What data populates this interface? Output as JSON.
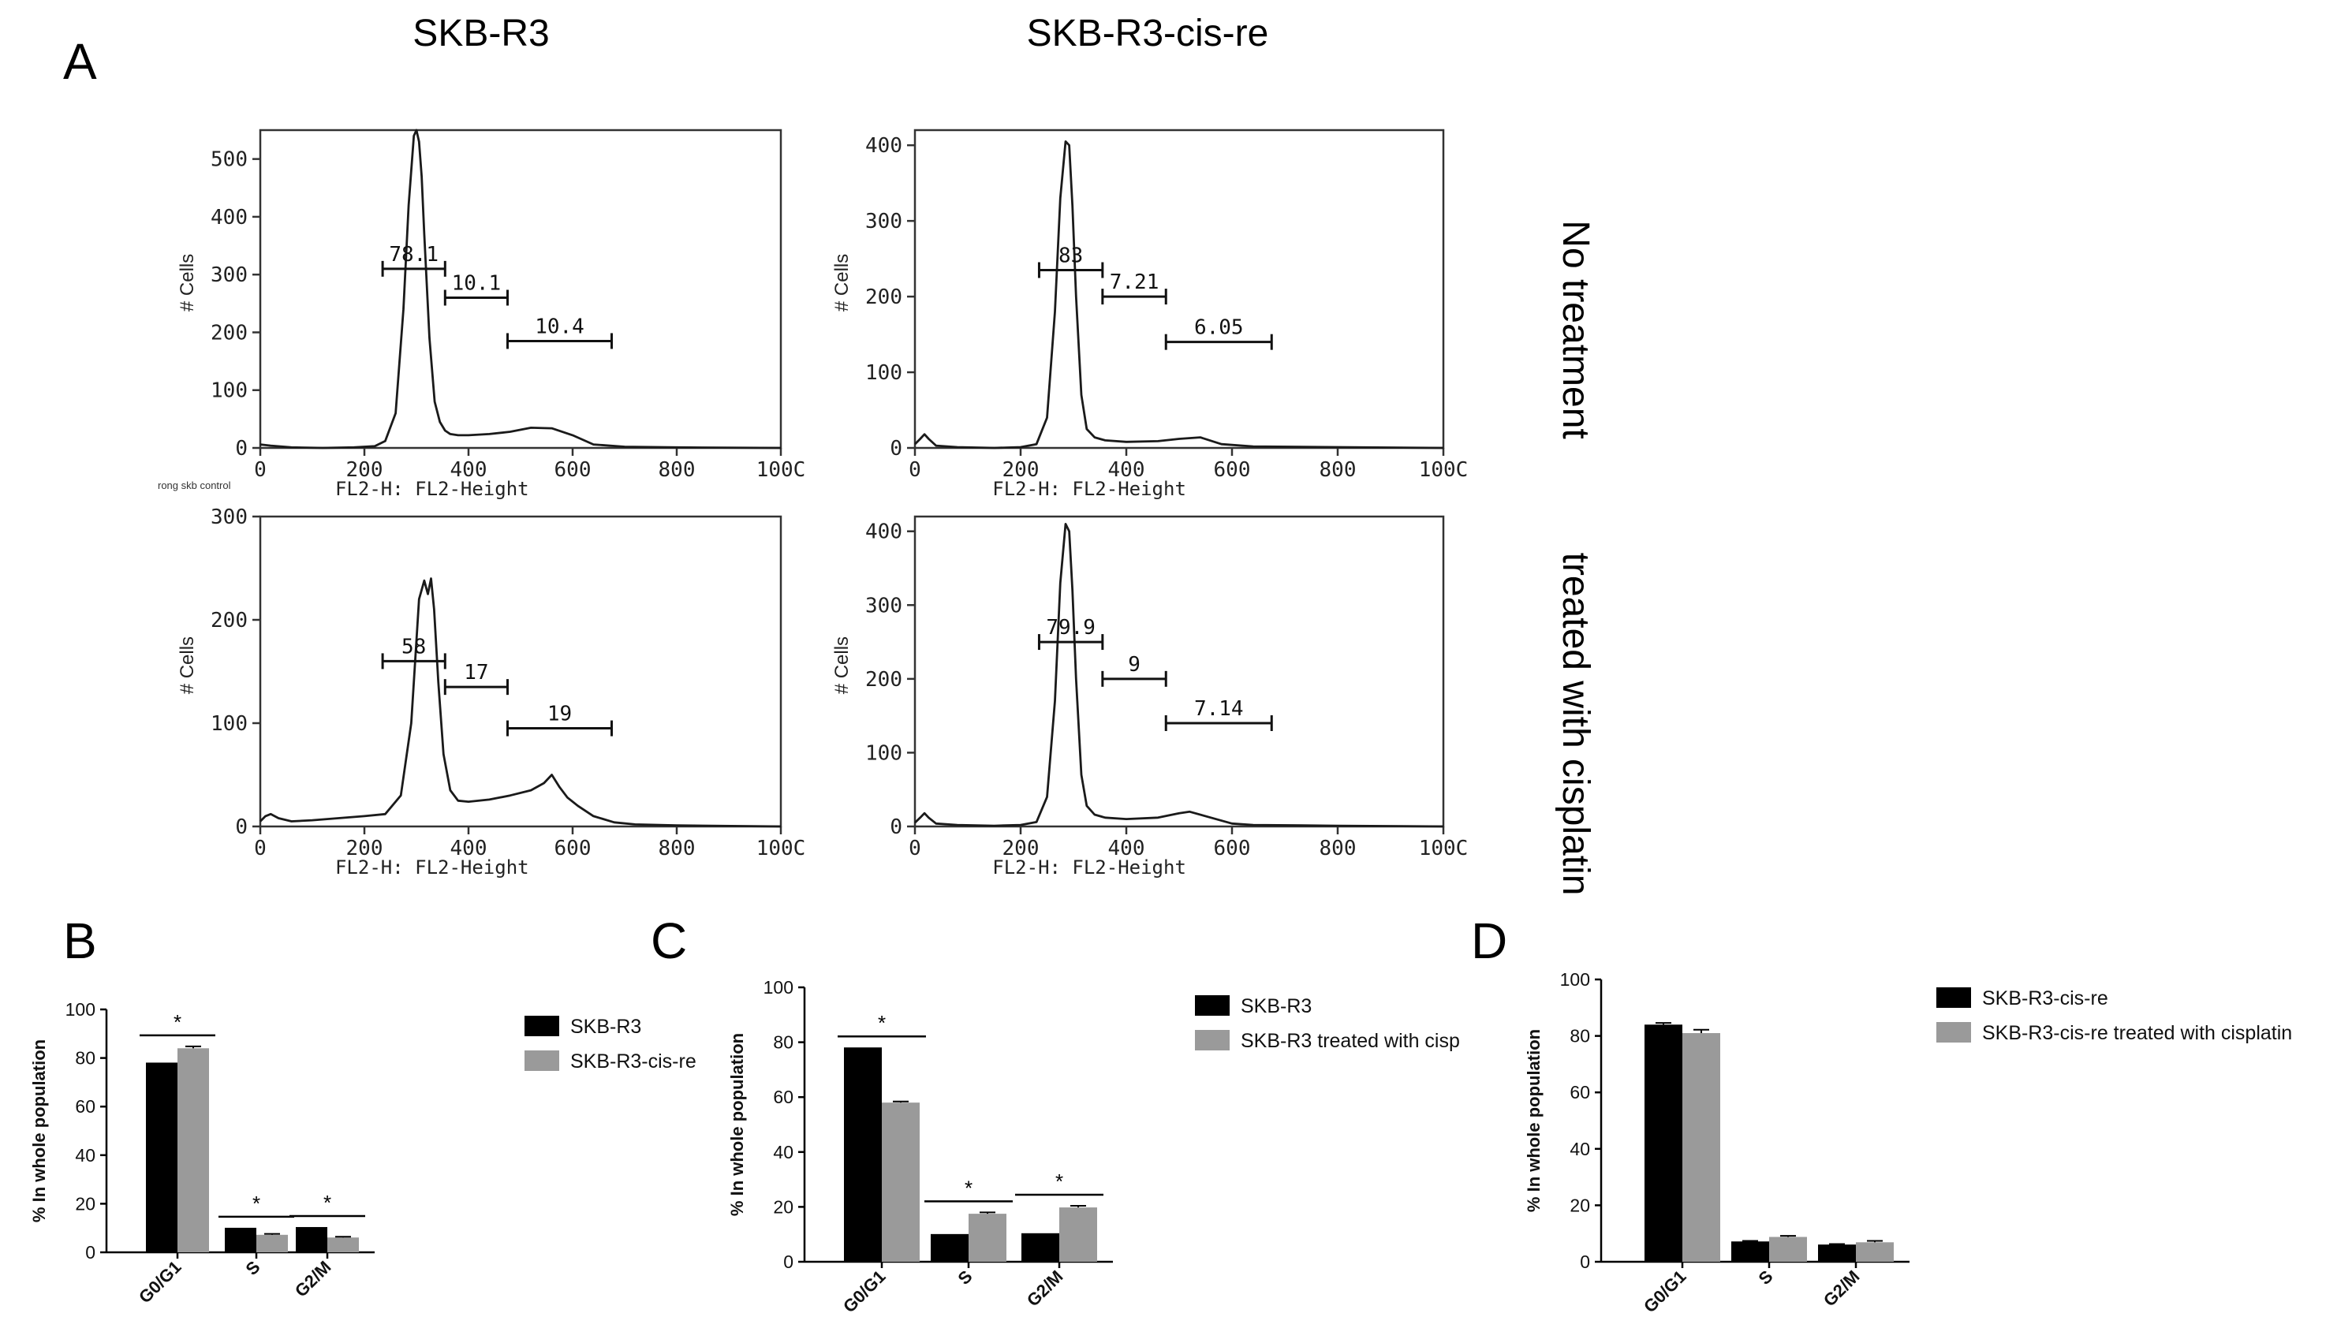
{
  "panel_letters": {
    "a": "A",
    "b": "B",
    "c": "C",
    "d": "D"
  },
  "column_titles": {
    "left": "SKB-R3",
    "right": "SKB-R3-cis-re"
  },
  "row_labels": {
    "top": "No treatment",
    "bottom": "treated with cisplatin"
  },
  "colors": {
    "black_bar": "#000000",
    "gray_bar": "#9a9a9a",
    "trace": "#1a1a1a"
  },
  "chart_data": [
    {
      "id": "A1",
      "type": "line",
      "title": "",
      "xlabel": "FL2-H: FL2-Height",
      "ylabel": "# Cells",
      "note": "rong skb control",
      "xlim": [
        0,
        1000
      ],
      "ylim": [
        0,
        550
      ],
      "yticks": [
        "0",
        "100",
        "200",
        "300",
        "400",
        "500"
      ],
      "xticks": [
        "0",
        "200",
        "400",
        "600",
        "800",
        "100C"
      ],
      "x": [
        0,
        20,
        60,
        120,
        180,
        220,
        240,
        260,
        275,
        285,
        295,
        300,
        305,
        310,
        315,
        325,
        335,
        345,
        355,
        365,
        380,
        400,
        440,
        480,
        520,
        560,
        600,
        640,
        700,
        800,
        1000
      ],
      "y": [
        6,
        4,
        1,
        0,
        1,
        3,
        12,
        60,
        240,
        420,
        540,
        550,
        530,
        470,
        370,
        190,
        80,
        45,
        30,
        24,
        22,
        22,
        24,
        28,
        35,
        34,
        22,
        6,
        2,
        1,
        0
      ],
      "gates": [
        {
          "label": "78.1",
          "from": 235,
          "to": 355,
          "level": 310
        },
        {
          "label": "10.1",
          "from": 355,
          "to": 475,
          "level": 260
        },
        {
          "label": "10.4",
          "from": 475,
          "to": 675,
          "level": 185
        }
      ]
    },
    {
      "id": "A2",
      "type": "line",
      "title": "",
      "xlabel": "FL2-H: FL2-Height",
      "ylabel": "# Cells",
      "xlim": [
        0,
        1000
      ],
      "ylim": [
        0,
        420
      ],
      "yticks": [
        "0",
        "100",
        "200",
        "300",
        "400"
      ],
      "xticks": [
        "0",
        "200",
        "400",
        "600",
        "800",
        "100C"
      ],
      "x": [
        0,
        10,
        18,
        26,
        40,
        80,
        150,
        200,
        230,
        250,
        265,
        275,
        285,
        292,
        298,
        305,
        315,
        325,
        340,
        360,
        400,
        460,
        500,
        540,
        580,
        640,
        800,
        1000
      ],
      "y": [
        5,
        12,
        18,
        12,
        3,
        1,
        0,
        1,
        5,
        40,
        180,
        330,
        405,
        400,
        320,
        200,
        70,
        25,
        14,
        10,
        8,
        9,
        12,
        14,
        5,
        2,
        1,
        0
      ],
      "gates": [
        {
          "label": "83",
          "from": 235,
          "to": 355,
          "level": 235
        },
        {
          "label": "7.21",
          "from": 355,
          "to": 475,
          "level": 200
        },
        {
          "label": "6.05",
          "from": 475,
          "to": 675,
          "level": 140
        }
      ]
    },
    {
      "id": "A3",
      "type": "line",
      "title": "",
      "xlabel": "FL2-H: FL2-Height",
      "ylabel": "# Cells",
      "xlim": [
        0,
        1000
      ],
      "ylim": [
        0,
        300
      ],
      "yticks": [
        "0",
        "100",
        "200",
        "300"
      ],
      "xticks": [
        "0",
        "200",
        "400",
        "600",
        "800",
        "100C"
      ],
      "x": [
        0,
        10,
        20,
        35,
        60,
        100,
        150,
        200,
        240,
        270,
        290,
        305,
        315,
        322,
        328,
        334,
        342,
        352,
        365,
        380,
        400,
        440,
        480,
        520,
        545,
        560,
        575,
        590,
        610,
        640,
        680,
        720,
        800,
        1000
      ],
      "y": [
        5,
        10,
        12,
        8,
        5,
        6,
        8,
        10,
        12,
        30,
        100,
        220,
        238,
        225,
        240,
        210,
        140,
        70,
        35,
        25,
        24,
        26,
        30,
        35,
        42,
        50,
        38,
        28,
        20,
        10,
        4,
        2,
        1,
        0
      ],
      "gates": [
        {
          "label": "58",
          "from": 235,
          "to": 355,
          "level": 160
        },
        {
          "label": "17",
          "from": 355,
          "to": 475,
          "level": 135
        },
        {
          "label": "19",
          "from": 475,
          "to": 675,
          "level": 95
        }
      ]
    },
    {
      "id": "A4",
      "type": "line",
      "title": "",
      "xlabel": "FL2-H: FL2-Height",
      "ylabel": "# Cells",
      "xlim": [
        0,
        1000
      ],
      "ylim": [
        0,
        420
      ],
      "yticks": [
        "0",
        "100",
        "200",
        "300",
        "400"
      ],
      "xticks": [
        "0",
        "200",
        "400",
        "600",
        "800",
        "100C"
      ],
      "x": [
        0,
        10,
        18,
        26,
        40,
        80,
        150,
        200,
        230,
        250,
        265,
        275,
        285,
        292,
        298,
        305,
        315,
        325,
        340,
        360,
        400,
        460,
        500,
        520,
        560,
        600,
        640,
        800,
        1000
      ],
      "y": [
        5,
        12,
        18,
        12,
        4,
        2,
        1,
        2,
        6,
        40,
        170,
        330,
        410,
        400,
        320,
        200,
        70,
        28,
        16,
        12,
        10,
        12,
        18,
        20,
        12,
        4,
        2,
        1,
        0
      ],
      "gates": [
        {
          "label": "79.9",
          "from": 235,
          "to": 355,
          "level": 250
        },
        {
          "label": "9",
          "from": 355,
          "to": 475,
          "level": 200
        },
        {
          "label": "7.14",
          "from": 475,
          "to": 675,
          "level": 140
        }
      ]
    },
    {
      "id": "B",
      "type": "bar",
      "title": "",
      "xlabel": "",
      "ylabel": "% In whole population",
      "ylim": [
        0,
        100
      ],
      "yticks": [
        "0",
        "20",
        "40",
        "60",
        "80",
        "100"
      ],
      "categories": [
        "G0/G1",
        "S",
        "G2/M"
      ],
      "series": [
        {
          "name": "SKB-R3",
          "color": "#000000",
          "values": [
            78.1,
            10.1,
            10.4
          ],
          "errors": [
            0,
            0,
            0
          ]
        },
        {
          "name": "SKB-R3-cis-re",
          "color": "#9a9a9a",
          "values": [
            84,
            7.2,
            6.1
          ],
          "errors": [
            0.8,
            0.4,
            0.3
          ]
        }
      ],
      "significance": [
        "*",
        "*",
        "*"
      ],
      "legend_position": "right"
    },
    {
      "id": "C",
      "type": "bar",
      "title": "",
      "xlabel": "",
      "ylabel": "% In whole population",
      "ylim": [
        0,
        100
      ],
      "yticks": [
        "0",
        "20",
        "40",
        "60",
        "80",
        "100"
      ],
      "categories": [
        "G0/G1",
        "S",
        "G2/M"
      ],
      "series": [
        {
          "name": "SKB-R3",
          "color": "#000000",
          "values": [
            78.1,
            10.1,
            10.4
          ],
          "errors": [
            0,
            0,
            0
          ]
        },
        {
          "name": "SKB-R3 treated with cisp",
          "color": "#9a9a9a",
          "values": [
            58,
            17.5,
            19.8
          ],
          "errors": [
            0.4,
            0.5,
            0.6
          ]
        }
      ],
      "significance": [
        "*",
        "*",
        "*"
      ],
      "legend_position": "right"
    },
    {
      "id": "D",
      "type": "bar",
      "title": "",
      "xlabel": "",
      "ylabel": "% In whole population",
      "ylim": [
        0,
        100
      ],
      "yticks": [
        "0",
        "20",
        "40",
        "60",
        "80",
        "100"
      ],
      "categories": [
        "G0/G1",
        "S",
        "G2/M"
      ],
      "series": [
        {
          "name": "SKB-R3-cis-re",
          "color": "#000000",
          "values": [
            84,
            7.2,
            6.1
          ],
          "errors": [
            0.6,
            0.2,
            0.2
          ]
        },
        {
          "name": "SKB-R3-cis-re treated with cisplatin",
          "color": "#9a9a9a",
          "values": [
            81,
            8.8,
            6.9
          ],
          "errors": [
            1.2,
            0.4,
            0.5
          ]
        }
      ],
      "significance": [
        "",
        "",
        ""
      ],
      "legend_position": "right"
    }
  ]
}
